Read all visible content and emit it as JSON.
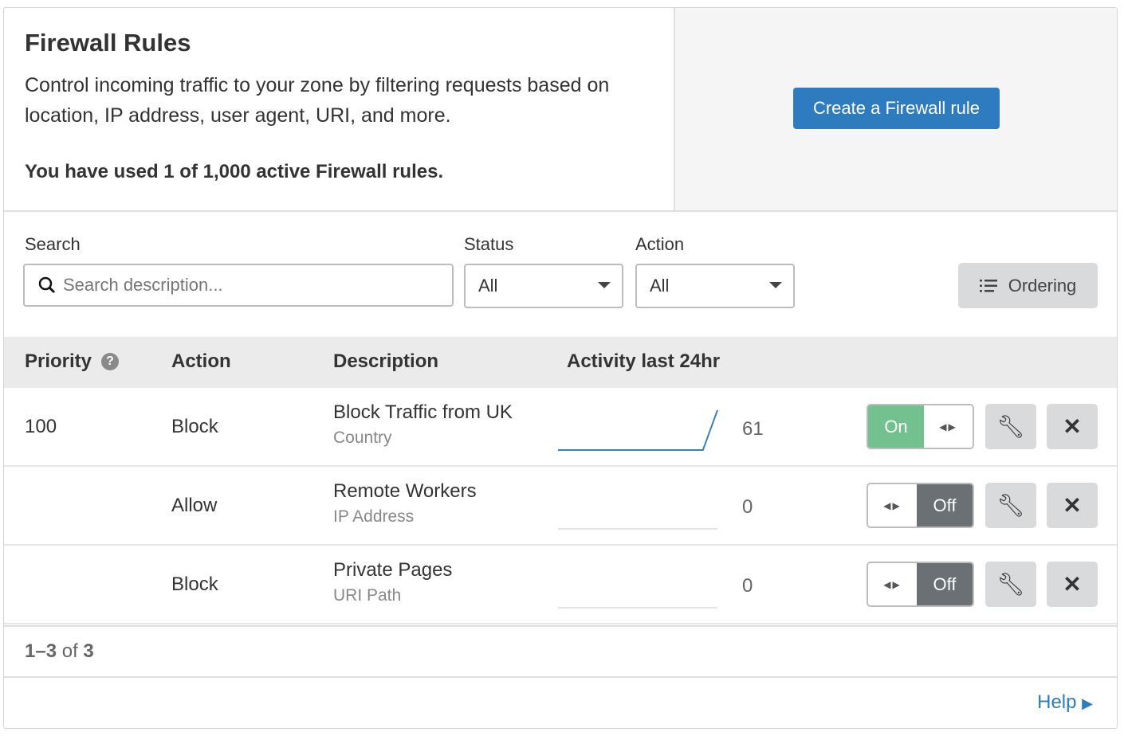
{
  "header": {
    "title": "Firewall Rules",
    "description": "Control incoming traffic to your zone by filtering requests based on location, IP address, user agent, URI, and more.",
    "usage": "You have used 1 of 1,000 active Firewall rules.",
    "create_button": "Create a Firewall rule"
  },
  "filters": {
    "search_label": "Search",
    "search_placeholder": "Search description...",
    "status_label": "Status",
    "status_value": "All",
    "action_label": "Action",
    "action_value": "All",
    "ordering_button": "Ordering"
  },
  "table": {
    "columns": [
      "Priority",
      "Action",
      "Description",
      "Activity last 24hr"
    ],
    "rows": [
      {
        "priority": "100",
        "action": "Block",
        "name": "Block Traffic from UK",
        "type": "Country",
        "count": "61",
        "status": "On",
        "activity": [
          0,
          0,
          0,
          0,
          0,
          0,
          0,
          0,
          0,
          0,
          0,
          61
        ]
      },
      {
        "priority": "",
        "action": "Allow",
        "name": "Remote Workers",
        "type": "IP Address",
        "count": "0",
        "status": "Off",
        "activity": [
          0,
          0,
          0,
          0,
          0,
          0,
          0,
          0,
          0,
          0,
          0,
          0
        ]
      },
      {
        "priority": "",
        "action": "Block",
        "name": "Private Pages",
        "type": "URI Path",
        "count": "0",
        "status": "Off",
        "activity": [
          0,
          0,
          0,
          0,
          0,
          0,
          0,
          0,
          0,
          0,
          0,
          0
        ]
      }
    ]
  },
  "pagination": {
    "range": "1–3",
    "of": "of",
    "total": "3"
  },
  "footer": {
    "help": "Help"
  },
  "colors": {
    "primary": "#2f7bbf",
    "on": "#72c18e",
    "off": "#6b7075"
  }
}
